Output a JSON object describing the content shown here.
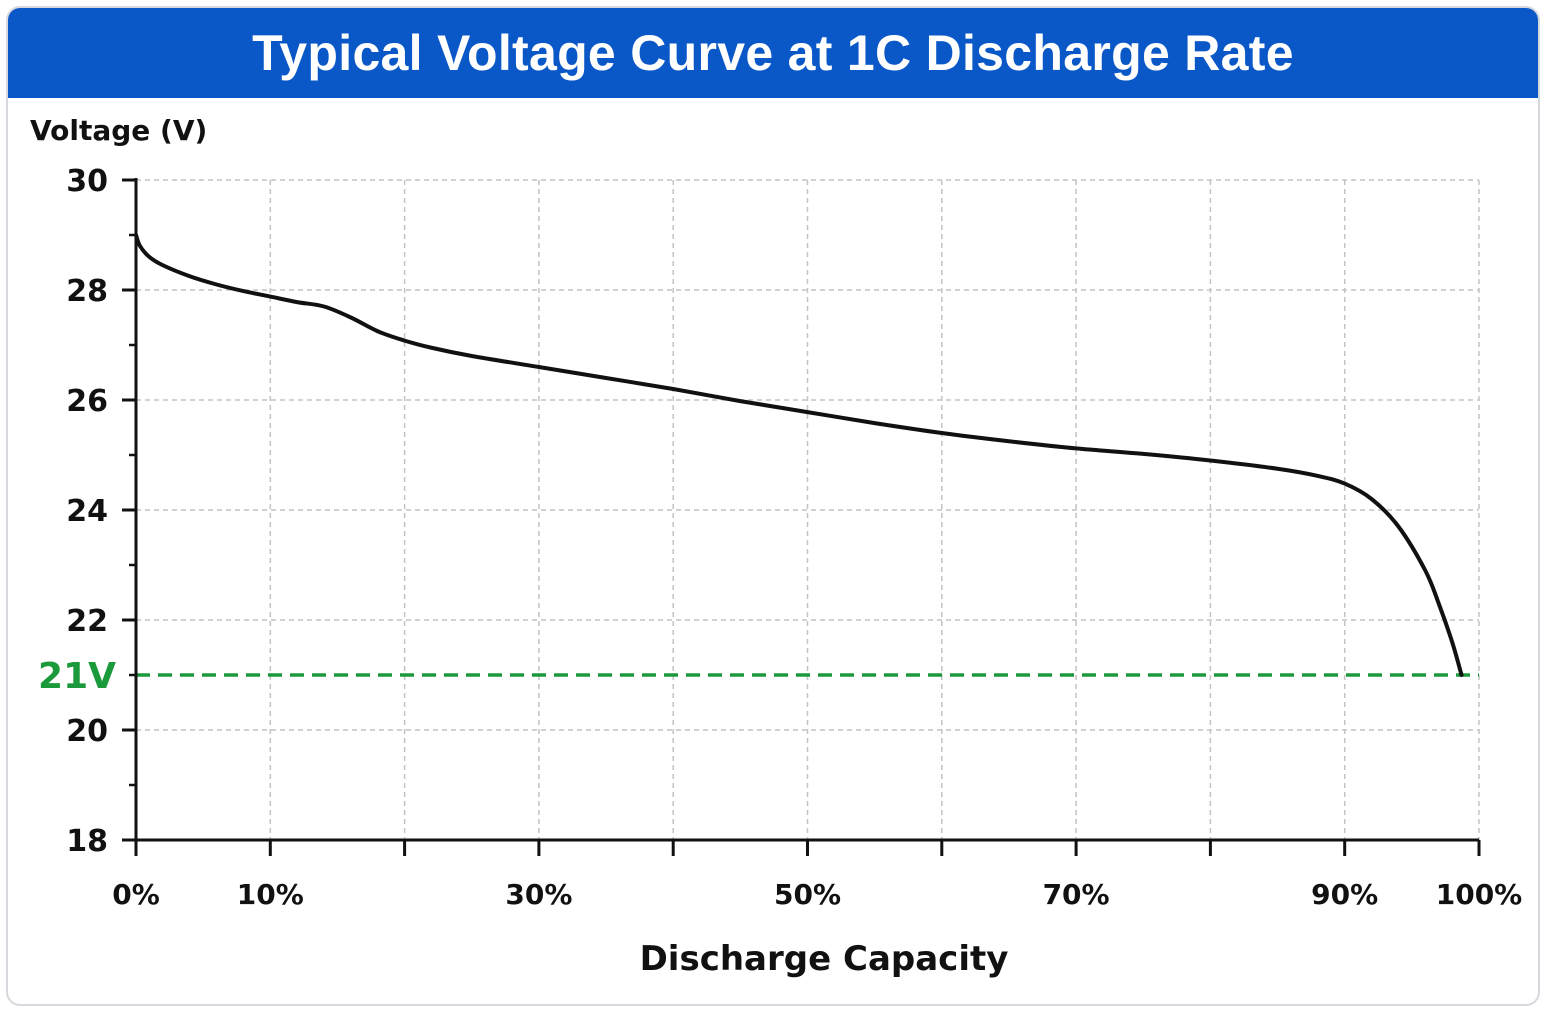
{
  "colors": {
    "header_bg": "#0a58c7",
    "header_text": "#ffffff",
    "curve": "#111111",
    "grid": "#c4c4c4",
    "cutoff": "#1a9a3a"
  },
  "chart_data": {
    "type": "line",
    "title": "Typical Voltage Curve at 1C Discharge Rate",
    "xlabel": "Discharge Capacity",
    "ylabel": "Voltage (V)",
    "x_unit": "%",
    "xlim": [
      0,
      100
    ],
    "ylim": [
      18,
      30
    ],
    "x_ticks": [
      0,
      10,
      20,
      30,
      40,
      50,
      60,
      70,
      80,
      90,
      100
    ],
    "x_tick_labels": [
      {
        "value": 0,
        "label": "0%"
      },
      {
        "value": 10,
        "label": "10%"
      },
      {
        "value": 30,
        "label": "30%"
      },
      {
        "value": 50,
        "label": "50%"
      },
      {
        "value": 70,
        "label": "70%"
      },
      {
        "value": 90,
        "label": "90%"
      },
      {
        "value": 100,
        "label": "100%"
      }
    ],
    "y_ticks": [
      18,
      20,
      22,
      24,
      26,
      28,
      30
    ],
    "y_tick_labels": [
      "18",
      "20",
      "22",
      "24",
      "26",
      "28",
      "30"
    ],
    "y_minor_ticks": [
      19,
      21,
      23,
      25,
      27,
      29
    ],
    "grid": true,
    "reference_line": {
      "y": 21,
      "label": "21V",
      "style": "dashed"
    },
    "series": [
      {
        "x": [
          0,
          0.3,
          1,
          2,
          4,
          6,
          8,
          10,
          12,
          14,
          16,
          18,
          20,
          22,
          25,
          30,
          35,
          40,
          45,
          50,
          55,
          60,
          65,
          70,
          75,
          80,
          85,
          88,
          90,
          92,
          94,
          96,
          97,
          98,
          98.7
        ],
        "y": [
          29.0,
          28.8,
          28.6,
          28.45,
          28.25,
          28.1,
          27.98,
          27.88,
          27.78,
          27.7,
          27.5,
          27.25,
          27.08,
          26.95,
          26.8,
          26.6,
          26.4,
          26.2,
          25.98,
          25.78,
          25.58,
          25.4,
          25.25,
          25.12,
          25.02,
          24.9,
          24.75,
          24.62,
          24.48,
          24.2,
          23.7,
          22.9,
          22.3,
          21.6,
          21.0
        ]
      }
    ]
  }
}
